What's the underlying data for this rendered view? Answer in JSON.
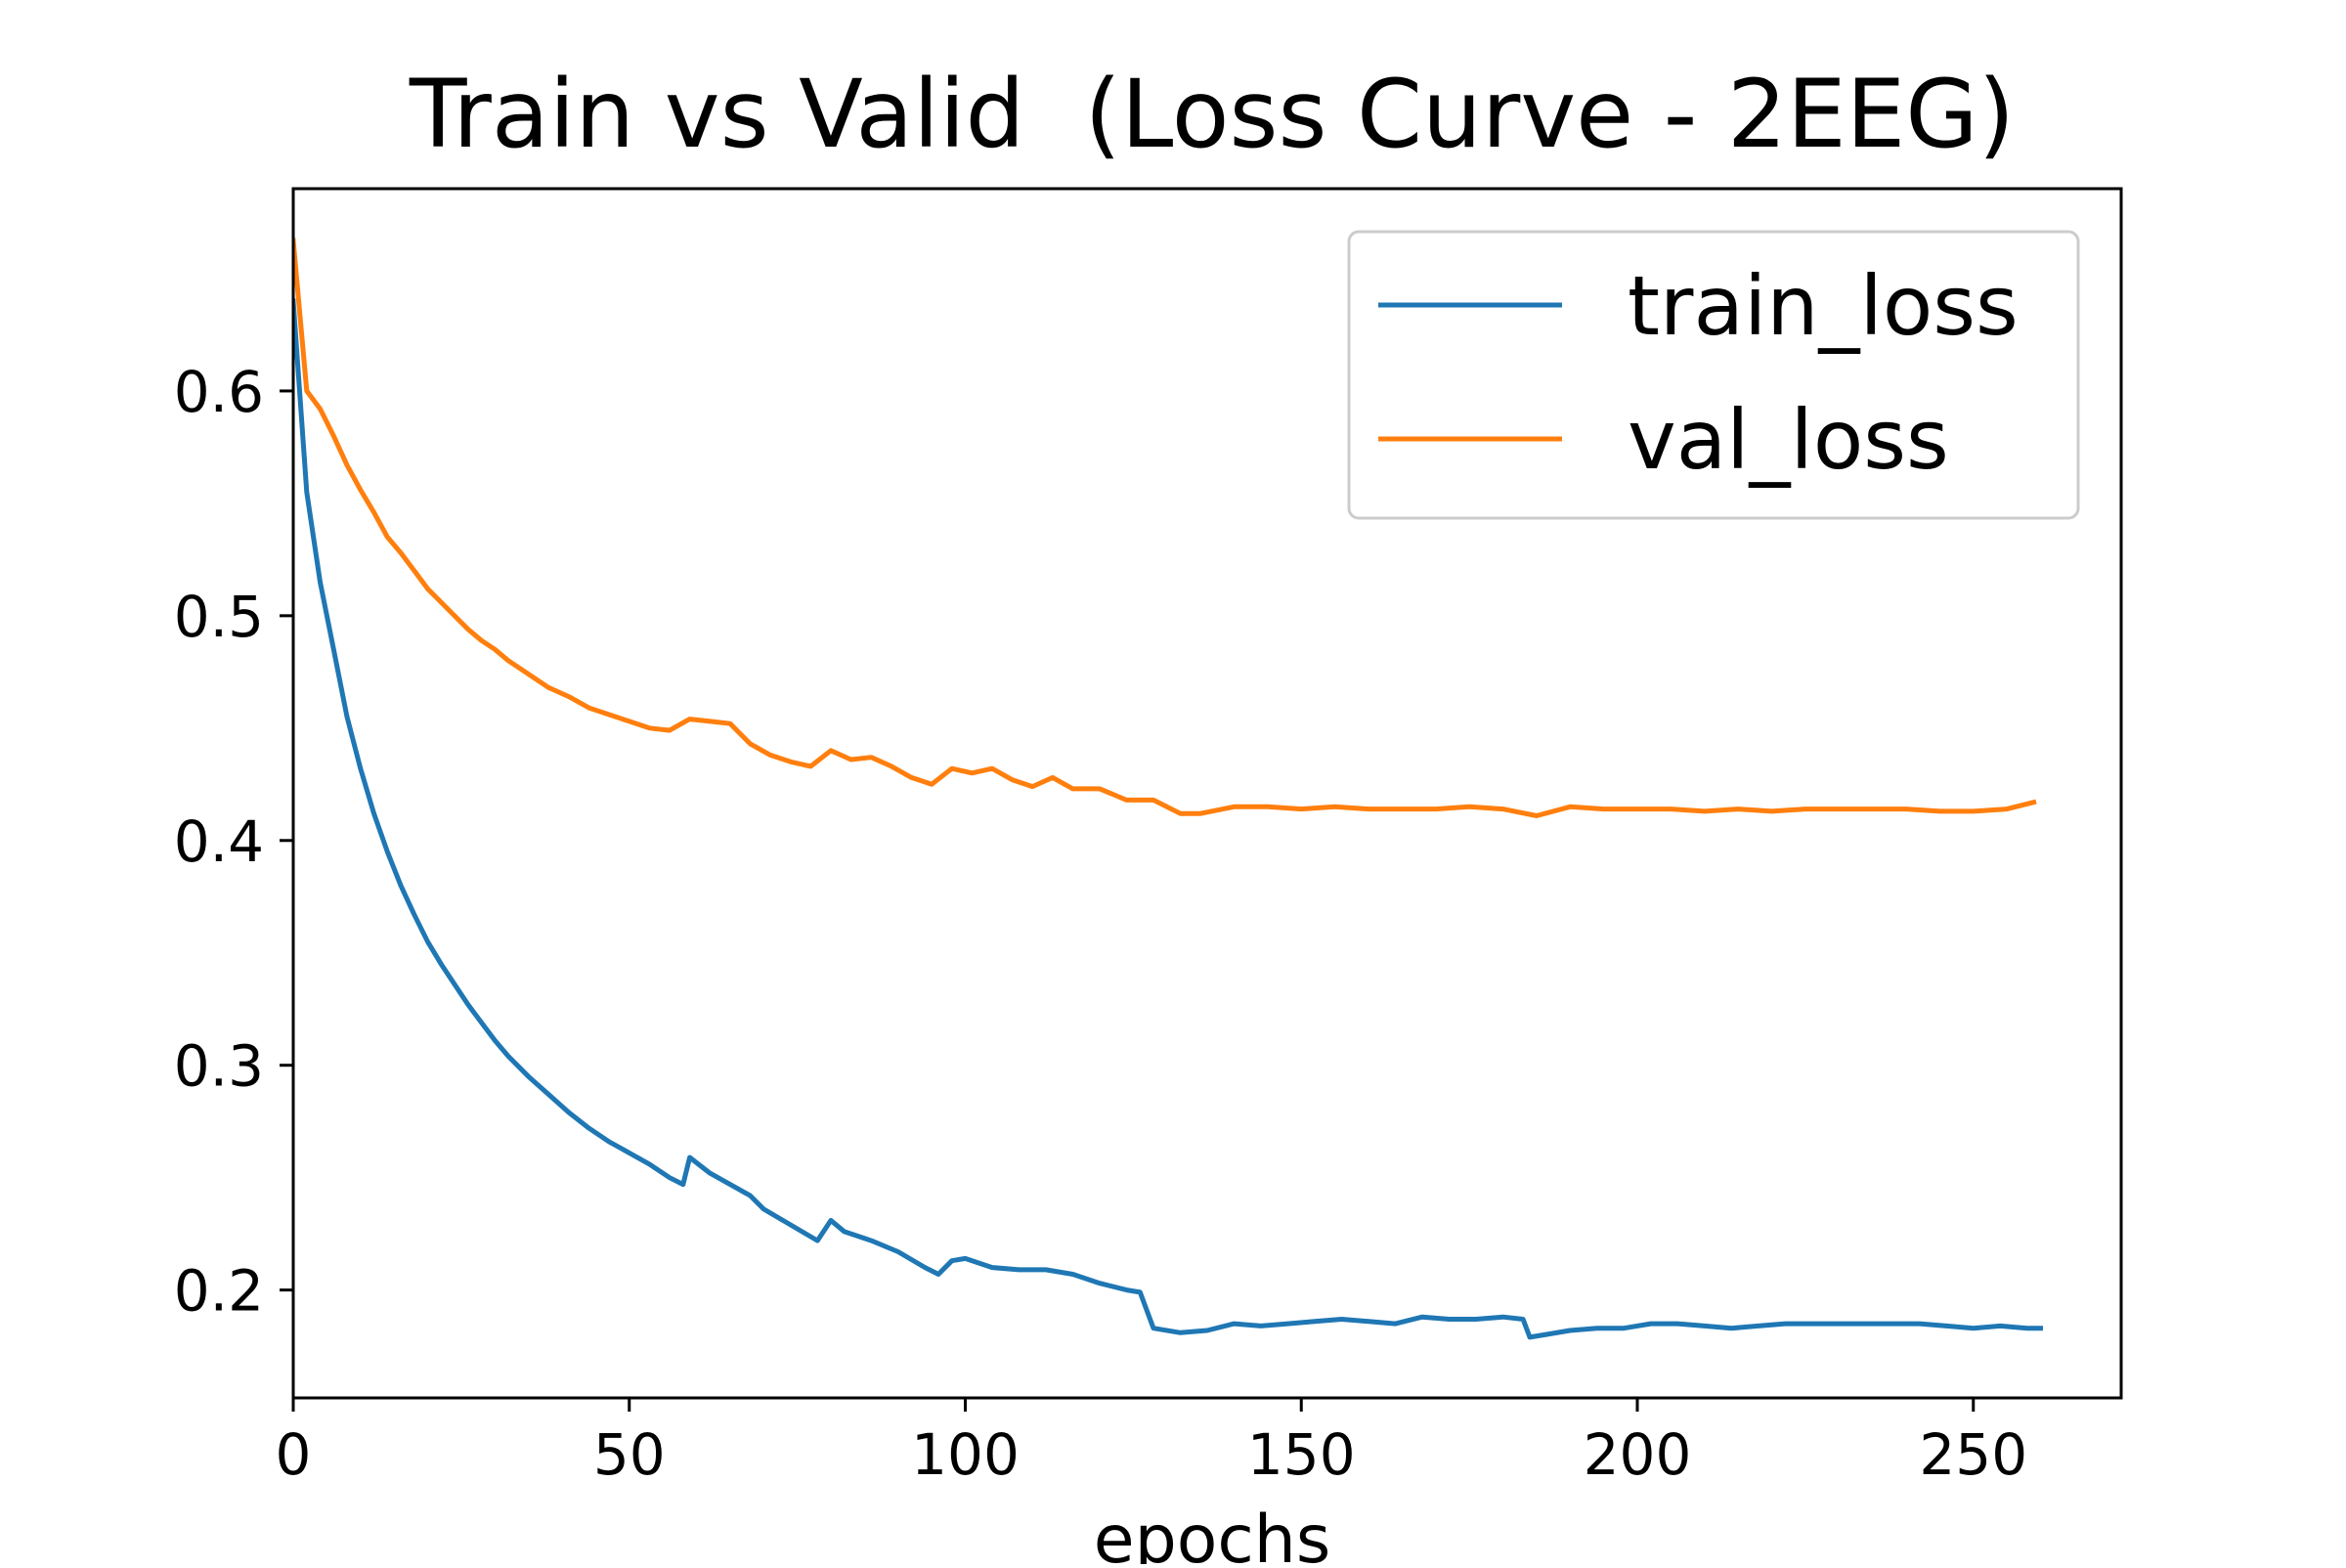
{
  "chart_data": {
    "type": "line",
    "title": "Train vs Valid  (Loss Curve - 2EEG)",
    "xlabel": "epochs",
    "ylabel": "",
    "xlim": [
      0,
      272
    ],
    "ylim": [
      0.152,
      0.69
    ],
    "xticks": [
      0,
      50,
      100,
      150,
      200,
      250
    ],
    "yticks": [
      0.2,
      0.3,
      0.4,
      0.5,
      0.6
    ],
    "grid": false,
    "legend_position": "top-right",
    "series": [
      {
        "name": "train_loss",
        "color": "#1f77b4",
        "x": [
          0,
          2,
          4,
          6,
          8,
          10,
          12,
          14,
          16,
          18,
          20,
          22,
          24,
          26,
          28,
          30,
          32,
          35,
          38,
          41,
          44,
          47,
          50,
          53,
          56,
          58,
          59,
          62,
          65,
          68,
          70,
          74,
          78,
          80,
          82,
          86,
          90,
          94,
          96,
          98,
          100,
          104,
          108,
          112,
          116,
          120,
          124,
          126,
          128,
          132,
          136,
          140,
          144,
          148,
          152,
          156,
          160,
          164,
          168,
          172,
          176,
          180,
          183,
          184,
          186,
          190,
          194,
          198,
          202,
          206,
          210,
          214,
          218,
          222,
          226,
          230,
          234,
          238,
          242,
          246,
          250,
          254,
          258,
          260
        ],
        "y": [
          0.64,
          0.555,
          0.515,
          0.485,
          0.455,
          0.432,
          0.412,
          0.395,
          0.38,
          0.367,
          0.355,
          0.345,
          0.336,
          0.327,
          0.319,
          0.311,
          0.304,
          0.295,
          0.287,
          0.279,
          0.272,
          0.266,
          0.261,
          0.256,
          0.25,
          0.247,
          0.259,
          0.252,
          0.247,
          0.242,
          0.236,
          0.229,
          0.222,
          0.231,
          0.226,
          0.222,
          0.217,
          0.21,
          0.207,
          0.213,
          0.214,
          0.21,
          0.209,
          0.209,
          0.207,
          0.203,
          0.2,
          0.199,
          0.183,
          0.181,
          0.182,
          0.185,
          0.184,
          0.185,
          0.186,
          0.187,
          0.186,
          0.185,
          0.188,
          0.187,
          0.187,
          0.188,
          0.187,
          0.179,
          0.18,
          0.182,
          0.183,
          0.183,
          0.185,
          0.185,
          0.184,
          0.183,
          0.184,
          0.185,
          0.185,
          0.185,
          0.185,
          0.185,
          0.185,
          0.184,
          0.183,
          0.184,
          0.183,
          0.183
        ]
      },
      {
        "name": "val_loss",
        "color": "#ff7f0e",
        "x": [
          0,
          2,
          4,
          6,
          8,
          10,
          12,
          14,
          16,
          18,
          20,
          22,
          24,
          26,
          28,
          30,
          32,
          35,
          38,
          41,
          44,
          47,
          50,
          53,
          56,
          59,
          62,
          65,
          68,
          71,
          74,
          77,
          80,
          83,
          86,
          89,
          92,
          95,
          98,
          101,
          104,
          107,
          110,
          113,
          116,
          120,
          124,
          128,
          132,
          135,
          140,
          145,
          150,
          155,
          160,
          165,
          170,
          175,
          180,
          185,
          190,
          195,
          200,
          205,
          210,
          215,
          220,
          225,
          230,
          235,
          240,
          245,
          250,
          255,
          259
        ],
        "y": [
          0.667,
          0.6,
          0.592,
          0.58,
          0.567,
          0.556,
          0.546,
          0.535,
          0.528,
          0.52,
          0.512,
          0.506,
          0.5,
          0.494,
          0.489,
          0.485,
          0.48,
          0.474,
          0.468,
          0.464,
          0.459,
          0.456,
          0.453,
          0.45,
          0.449,
          0.454,
          0.453,
          0.452,
          0.443,
          0.438,
          0.435,
          0.433,
          0.44,
          0.436,
          0.437,
          0.433,
          0.428,
          0.425,
          0.432,
          0.43,
          0.432,
          0.427,
          0.424,
          0.428,
          0.423,
          0.423,
          0.418,
          0.418,
          0.412,
          0.412,
          0.415,
          0.415,
          0.414,
          0.415,
          0.414,
          0.414,
          0.414,
          0.415,
          0.414,
          0.411,
          0.415,
          0.414,
          0.414,
          0.414,
          0.413,
          0.414,
          0.413,
          0.414,
          0.414,
          0.414,
          0.414,
          0.413,
          0.413,
          0.414,
          0.417
        ]
      }
    ]
  }
}
